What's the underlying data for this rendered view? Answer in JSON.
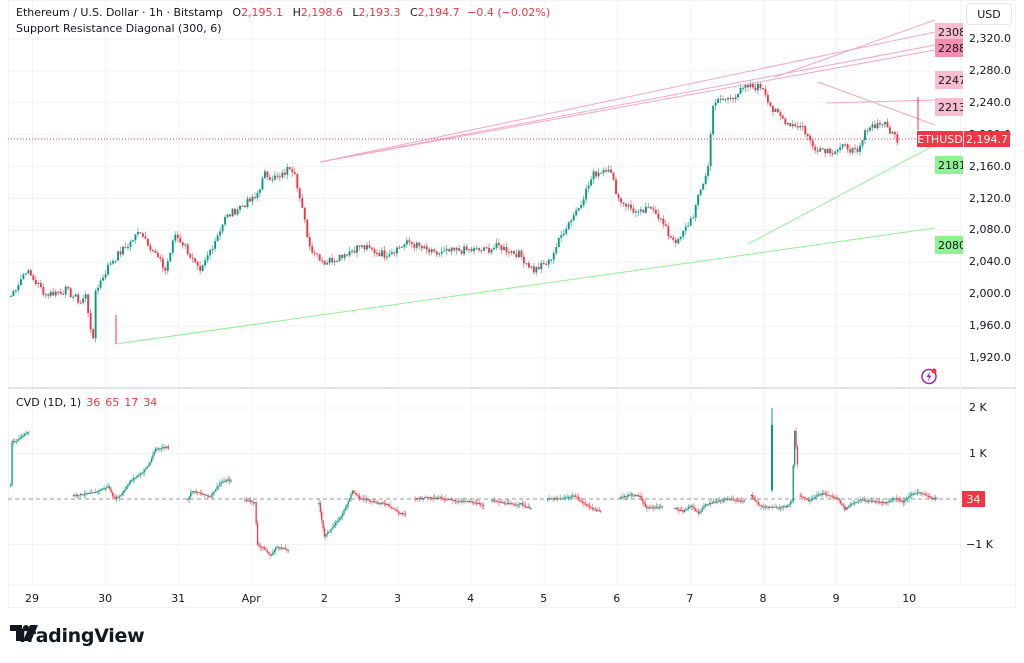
{
  "header": {
    "symbol_title": "Ethereum / U.S. Dollar · 1h · Bitstamp",
    "ohlc": {
      "O": "2,195.1",
      "H": "2,198.6",
      "L": "2,193.3",
      "C": "2,194.7",
      "change": "−0.4 (−0.02%)"
    },
    "indicator": "Support Resistance Diagonal (300, 6)"
  },
  "price_axis": {
    "currency": "USD",
    "ticks": [
      "2,320.0",
      "2,280.0",
      "2,240.0",
      "2,200.0",
      "2,160.0",
      "2,120.0",
      "2,080.0",
      "2,040.0",
      "2,000.0",
      "1,960.0",
      "1,920.0"
    ],
    "current_price": "2,194.7",
    "symbol_tag": "ETHUSD"
  },
  "level_tags": {
    "resistance": [
      "2308",
      "2288",
      "2247",
      "2213"
    ],
    "support": [
      "2181",
      "2080"
    ]
  },
  "cvd": {
    "label": "CVD (1D, 1)",
    "values": [
      "36",
      "65",
      "17",
      "34"
    ],
    "axis_ticks": [
      "2 K",
      "1 K",
      "−1 K"
    ],
    "current": "34"
  },
  "time_axis": {
    "labels": [
      "29",
      "30",
      "31",
      "Apr",
      "2",
      "3",
      "4",
      "5",
      "6",
      "7",
      "8",
      "9",
      "10"
    ]
  },
  "branding": {
    "logo_text": "TradingView"
  },
  "colors": {
    "up": "#089981",
    "down": "#f23645",
    "resistance": "#f8a5c2",
    "support": "#8ef38e",
    "grid": "#f0f3fa"
  },
  "chart_data": {
    "type": "candlestick",
    "title": "Ethereum / U.S. Dollar · 1h · Bitstamp",
    "xlabel": "",
    "ylabel": "USD",
    "ylim": [
      1900,
      2330
    ],
    "grid": true,
    "x": [
      "29",
      "30",
      "31",
      "Apr",
      "2",
      "3",
      "4",
      "5",
      "6",
      "7",
      "8",
      "9",
      "10"
    ],
    "price_path_daily_approx": [
      {
        "day": "29",
        "open": 1998,
        "high": 2030,
        "low": 1990,
        "close": 2010
      },
      {
        "day": "30",
        "open": 2010,
        "high": 2030,
        "low": 1940,
        "close": 2050
      },
      {
        "day": "31",
        "open": 2050,
        "high": 2085,
        "low": 2020,
        "close": 2060
      },
      {
        "day": "Apr",
        "open": 2060,
        "high": 2130,
        "low": 2010,
        "close": 2115
      },
      {
        "day": "2",
        "open": 2115,
        "high": 2165,
        "low": 2030,
        "close": 2045
      },
      {
        "day": "3",
        "open": 2045,
        "high": 2070,
        "low": 2030,
        "close": 2050
      },
      {
        "day": "4",
        "open": 2050,
        "high": 2065,
        "low": 2040,
        "close": 2055
      },
      {
        "day": "5",
        "open": 2055,
        "high": 2075,
        "low": 2020,
        "close": 2040
      },
      {
        "day": "6",
        "open": 2040,
        "high": 2170,
        "low": 2030,
        "close": 2155
      },
      {
        "day": "7",
        "open": 2155,
        "high": 2165,
        "low": 2065,
        "close": 2090
      },
      {
        "day": "8",
        "open": 2090,
        "high": 2275,
        "low": 2085,
        "close": 2255
      },
      {
        "day": "9",
        "open": 2255,
        "high": 2270,
        "low": 2160,
        "close": 2180
      },
      {
        "day": "10",
        "open": 2180,
        "high": 2240,
        "low": 2165,
        "close": 2194.7
      }
    ],
    "support_resistance_lines": {
      "resistance": [
        2308,
        2288,
        2247,
        2213
      ],
      "support": [
        2181,
        2080
      ]
    },
    "last": {
      "open": 2195.1,
      "high": 2198.6,
      "low": 2193.3,
      "close": 2194.7,
      "change": -0.4,
      "change_pct": -0.02
    },
    "cvd_series": {
      "name": "CVD (1D, 1)",
      "ylim": [
        -1500,
        2100
      ],
      "ticks": [
        2000,
        1000,
        -1000
      ],
      "last": 34
    }
  }
}
